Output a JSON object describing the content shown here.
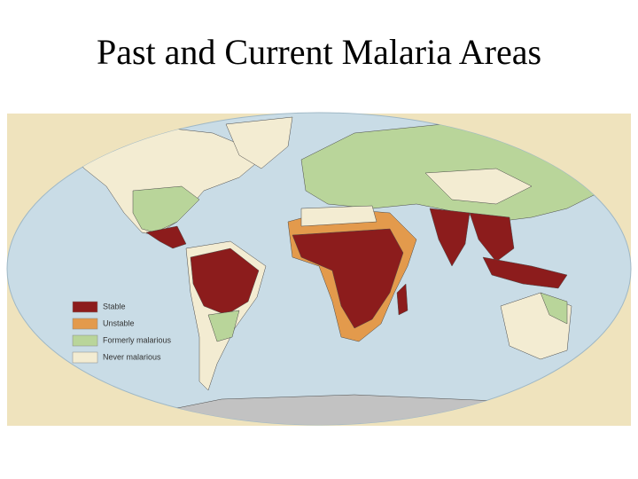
{
  "title": "Past and Current Malaria Areas",
  "legend": [
    {
      "label": "Stable",
      "color": "#8c1c1c"
    },
    {
      "label": "Unstable",
      "color": "#e39a4c"
    },
    {
      "label": "Formerly malarious",
      "color": "#b9d59a"
    },
    {
      "label": "Never malarious",
      "color": "#f3ecd2"
    }
  ]
}
